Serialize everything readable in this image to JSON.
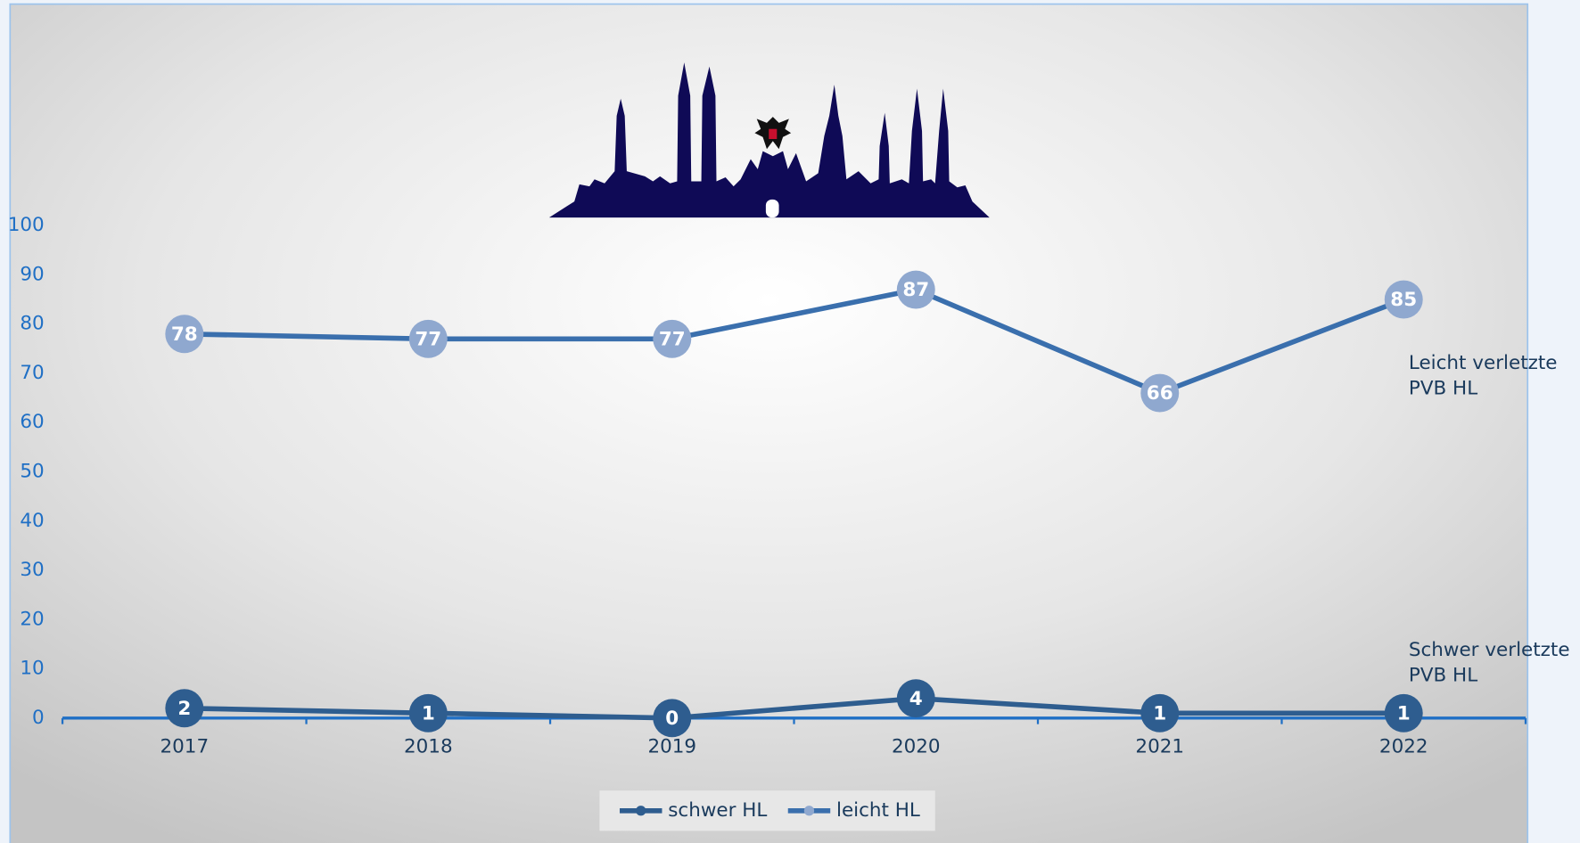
{
  "chart_data": {
    "type": "line",
    "categories": [
      "2017",
      "2018",
      "2019",
      "2020",
      "2021",
      "2022"
    ],
    "series": [
      {
        "name": "schwer HL",
        "color": "#2e5d8f",
        "marker_color": "#2e5d8f",
        "values": [
          2,
          1,
          0,
          4,
          1,
          1
        ]
      },
      {
        "name": "leicht HL",
        "color": "#3a6fad",
        "marker_color": "#8fa8cf",
        "values": [
          78,
          77,
          77,
          87,
          66,
          85
        ]
      }
    ],
    "ylim": [
      0,
      100
    ],
    "yticks": [
      0,
      10,
      20,
      30,
      40,
      50,
      60,
      70,
      80,
      90,
      100
    ],
    "grid": false,
    "legend": "bottom",
    "annotations": [
      {
        "series": 1,
        "lines": [
          "Leicht verletzte",
          "PVB HL"
        ]
      },
      {
        "series": 0,
        "lines": [
          "Schwer verletzte",
          "PVB HL"
        ]
      }
    ]
  }
}
